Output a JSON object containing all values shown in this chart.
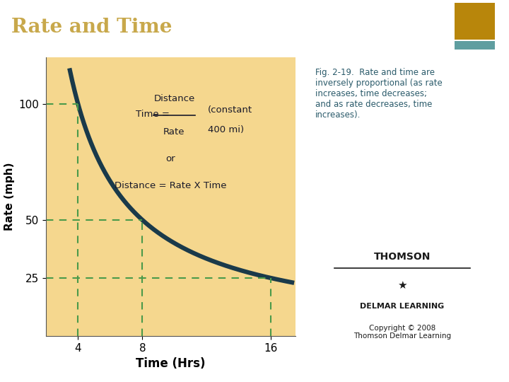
{
  "title": "Rate and Time",
  "title_bg_color": "#1a1a1a",
  "title_text_color": "#c8a84b",
  "accent_gold_color": "#b8860b",
  "accent_teal_color": "#5f9ea0",
  "plot_bg_color": "#f5d78e",
  "curve_color": "#1a3a4a",
  "dashed_line_color": "#4a9a4a",
  "xlabel": "Time (Hrs)",
  "ylabel": "Rate (mph)",
  "xticks": [
    4,
    8,
    16
  ],
  "yticks": [
    25,
    50,
    100
  ],
  "xlim": [
    2,
    17.5
  ],
  "ylim": [
    0,
    120
  ],
  "distance": 400,
  "fig_caption": "Fig. 2-19.  Rate and time are\ninversely proportional (as rate\nincreases, time decreases;\nand as rate decreases, time\nincreases).",
  "copyright_text": "Copyright © 2008\nThomson Delmar Learning",
  "thomson_text": "THOMSON",
  "delmar_text": "DELMAR LEARNING",
  "curve_linewidth": 4.5,
  "dashed_linewidth": 1.5,
  "red_bar_color": "#8b1a1a"
}
